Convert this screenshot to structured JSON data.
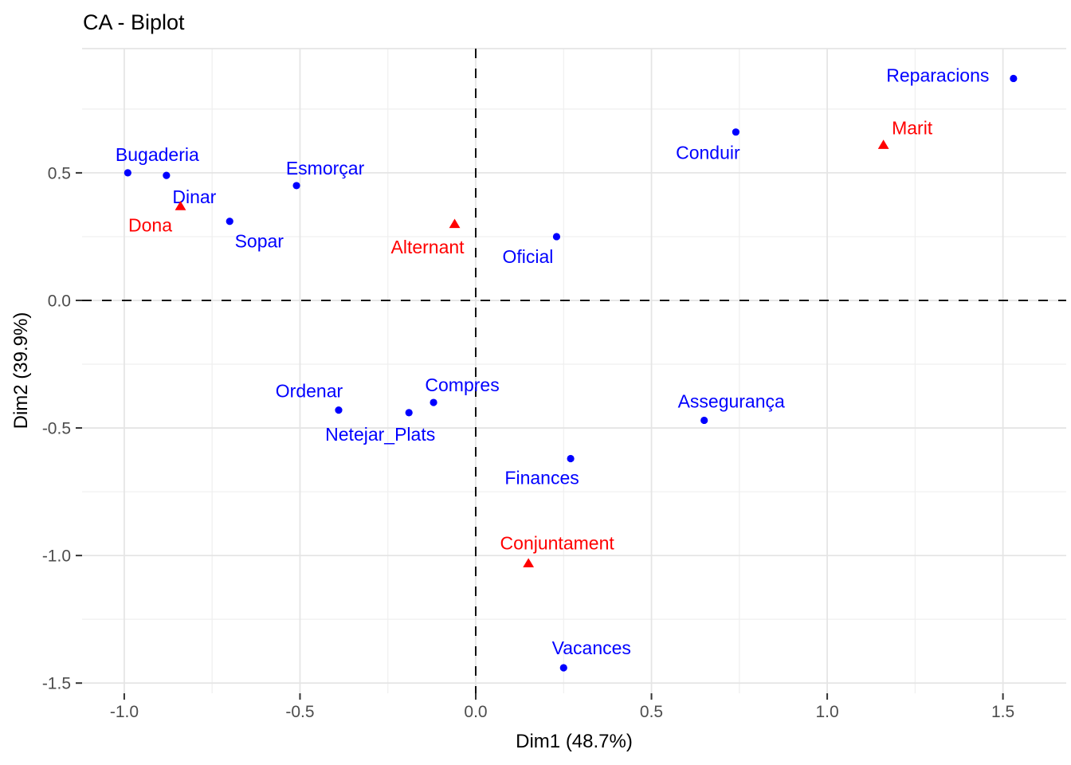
{
  "title": "CA - Biplot",
  "axes": {
    "x": {
      "label": "Dim1 (48.7%)"
    },
    "y": {
      "label": "Dim2 (39.9%)"
    }
  },
  "colors": {
    "blue_points": "#0000FF",
    "red_points": "#FF0000",
    "grid_major": "#E5E5E5",
    "grid_minor": "#EFEFEF",
    "tick_mark": "#333333",
    "tick_label": "#4D4D4D",
    "zero_line": "#111111"
  },
  "chart_data": {
    "type": "scatter",
    "title": "CA - Biplot",
    "xlabel": "Dim1 (48.7%)",
    "ylabel": "Dim2 (39.9%)",
    "xlim": [
      -1.12,
      1.68
    ],
    "ylim": [
      -1.54,
      0.987
    ],
    "grid": true,
    "zero_lines": "dashed",
    "legend": "none",
    "x_ticks": [
      {
        "value": -1.0,
        "label": "-1.0"
      },
      {
        "value": -0.5,
        "label": "-0.5"
      },
      {
        "value": 0.0,
        "label": "0.0"
      },
      {
        "value": 0.5,
        "label": "0.5"
      },
      {
        "value": 1.0,
        "label": "1.0"
      },
      {
        "value": 1.5,
        "label": "1.5"
      }
    ],
    "y_ticks": [
      {
        "value": 0.5,
        "label": "0.5"
      },
      {
        "value": 0.0,
        "label": "0.0"
      },
      {
        "value": -0.5,
        "label": "-0.5"
      },
      {
        "value": -1.0,
        "label": "-1.0"
      },
      {
        "value": -1.5,
        "label": "-1.5"
      }
    ],
    "x_major_gridlines": [
      -1.0,
      -0.5,
      0.0,
      0.5,
      1.0,
      1.5
    ],
    "y_major_gridlines": [
      1.0,
      0.5,
      0.0,
      -0.5,
      -1.0,
      -1.5
    ],
    "x_minor_gridlines": [
      -0.75,
      -0.25,
      0.25,
      0.75,
      1.25
    ],
    "y_minor_gridlines": [
      0.75,
      0.25,
      -0.25,
      -0.75,
      -1.25
    ],
    "series": [
      {
        "name": "blue-circle-points",
        "marker": "circle",
        "color": "#0000FF",
        "points": [
          {
            "label": "Bugaderia",
            "x": -0.99,
            "y": 0.5,
            "dx": 37,
            "dy": -22
          },
          {
            "label": "Dinar",
            "x": -0.88,
            "y": 0.49,
            "dx": 35,
            "dy": 28
          },
          {
            "label": "Sopar",
            "x": -0.7,
            "y": 0.31,
            "dx": 37,
            "dy": 26
          },
          {
            "label": "Esmorçar",
            "x": -0.51,
            "y": 0.45,
            "dx": 36,
            "dy": -21
          },
          {
            "label": "Ordenar",
            "x": -0.39,
            "y": -0.43,
            "dx": -37,
            "dy": -23
          },
          {
            "label": "Netejar_Plats",
            "x": -0.19,
            "y": -0.44,
            "dx": -36,
            "dy": 28
          },
          {
            "label": "Compres",
            "x": -0.12,
            "y": -0.4,
            "dx": 36,
            "dy": -21
          },
          {
            "label": "Oficial",
            "x": 0.23,
            "y": 0.25,
            "dx": -36,
            "dy": 26
          },
          {
            "label": "Conduir",
            "x": 0.74,
            "y": 0.66,
            "dx": -35,
            "dy": 27
          },
          {
            "label": "Assegurança",
            "x": 0.65,
            "y": -0.47,
            "dx": 34,
            "dy": -23
          },
          {
            "label": "Finances",
            "x": 0.27,
            "y": -0.62,
            "dx": -36,
            "dy": 25
          },
          {
            "label": "Reparacions",
            "x": 1.53,
            "y": 0.87,
            "dx": -95,
            "dy": -3
          },
          {
            "label": "Vacances",
            "x": 0.25,
            "y": -1.44,
            "dx": 35,
            "dy": -24
          }
        ]
      },
      {
        "name": "red-triangle-points",
        "marker": "triangle",
        "color": "#FF0000",
        "points": [
          {
            "label": "Dona",
            "x": -0.84,
            "y": 0.37,
            "dx": -38,
            "dy": 25
          },
          {
            "label": "Alternant",
            "x": -0.06,
            "y": 0.3,
            "dx": -34,
            "dy": 30
          },
          {
            "label": "Marit",
            "x": 1.16,
            "y": 0.61,
            "dx": 36,
            "dy": -20
          },
          {
            "label": "Conjuntament",
            "x": 0.15,
            "y": -1.03,
            "dx": 36,
            "dy": -24
          }
        ]
      }
    ]
  }
}
